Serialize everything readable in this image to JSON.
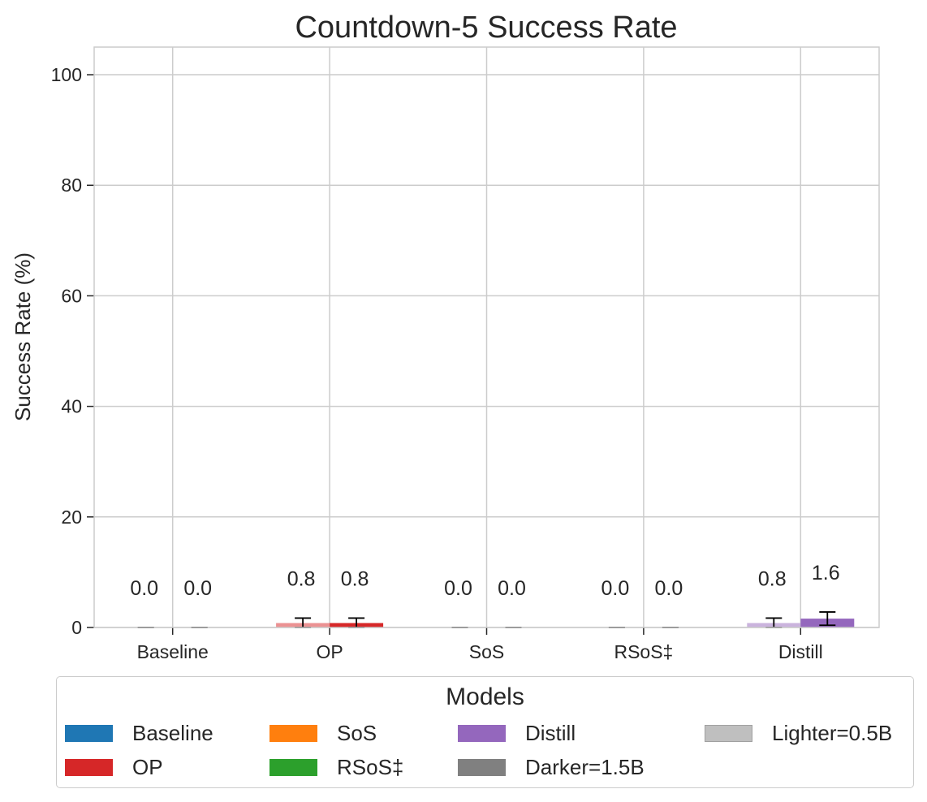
{
  "chart_data": {
    "type": "bar",
    "title": "Countdown-5 Success Rate",
    "xlabel": "",
    "ylabel": "Success Rate (%)",
    "ylim": [
      0,
      105
    ],
    "yticks": [
      "0",
      "20",
      "40",
      "60",
      "80",
      "100"
    ],
    "grid": true,
    "categories": [
      "Baseline",
      "OP",
      "SoS",
      "RSoS‡",
      "Distill"
    ],
    "series": [
      {
        "name": "0.5B",
        "values": [
          0.0,
          0.8,
          0.0,
          0.0,
          0.8
        ],
        "errors": [
          0.0,
          0.9,
          0.0,
          0.0,
          0.9
        ],
        "labels": [
          "0.0",
          "0.8",
          "0.0",
          "0.0",
          "0.8"
        ],
        "colors": [
          "#8fbbd9",
          "#eb9293",
          "#ffbf86",
          "#95cf95",
          "#cab3dd"
        ]
      },
      {
        "name": "1.5B",
        "values": [
          0.0,
          0.8,
          0.0,
          0.0,
          1.6
        ],
        "errors": [
          0.0,
          0.9,
          0.0,
          0.0,
          1.2
        ],
        "labels": [
          "0.0",
          "0.8",
          "0.0",
          "0.0",
          "1.6"
        ],
        "colors": [
          "#1f77b4",
          "#d62728",
          "#ff7f0e",
          "#2ca02c",
          "#9467bd"
        ]
      }
    ],
    "legend": {
      "title": "Models",
      "placement": "bottom",
      "entries": [
        {
          "label": "Baseline",
          "color": "#1f77b4"
        },
        {
          "label": "OP",
          "color": "#d62728"
        },
        {
          "label": "SoS",
          "color": "#ff7f0e"
        },
        {
          "label": "RSoS‡",
          "color": "#2ca02c"
        },
        {
          "label": "Distill",
          "color": "#9467bd"
        },
        {
          "label": "Darker=1.5B",
          "color": "#808080"
        },
        {
          "label": "Lighter=0.5B",
          "color": "#bfbfbf"
        }
      ]
    }
  }
}
